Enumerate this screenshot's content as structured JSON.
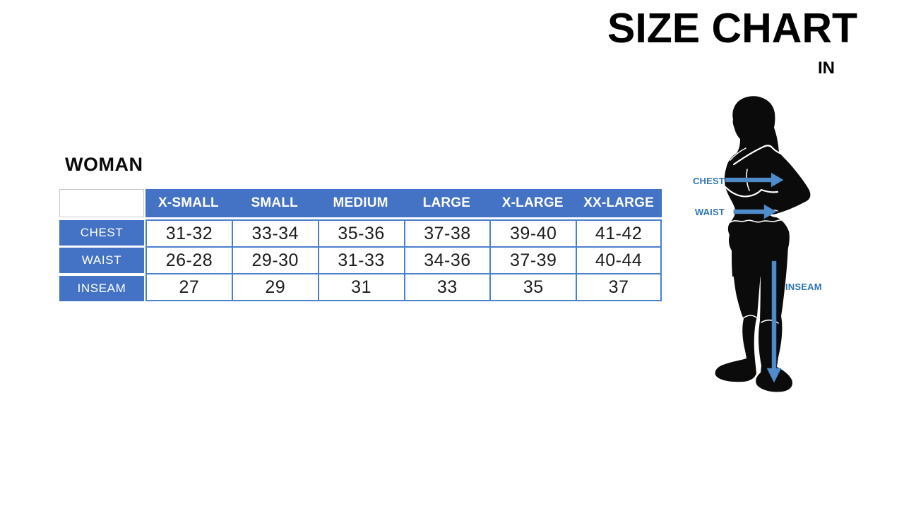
{
  "header": {
    "title": "SIZE CHART",
    "unit": "IN"
  },
  "section": {
    "title": "WOMAN"
  },
  "table": {
    "columns": [
      "X-SMALL",
      "SMALL",
      "MEDIUM",
      "LARGE",
      "X-LARGE",
      "XX-LARGE"
    ],
    "rows": [
      {
        "label": "CHEST",
        "values": [
          "31-32",
          "33-34",
          "35-36",
          "37-38",
          "39-40",
          "41-42"
        ]
      },
      {
        "label": "WAIST",
        "values": [
          "26-28",
          "29-30",
          "31-33",
          "34-36",
          "37-39",
          "40-44"
        ]
      },
      {
        "label": "INSEAM",
        "values": [
          "27",
          "29",
          "31",
          "33",
          "35",
          "37"
        ]
      }
    ]
  },
  "figure": {
    "type": "woman-silhouette",
    "labels": {
      "chest": "CHEST",
      "waist": "WAIST",
      "inseam": "INSEAM"
    }
  },
  "colors": {
    "table_blue": "#4472C4",
    "cell_border_blue": "#4A80CC",
    "arrow_blue": "#4F8CCB",
    "annotation_blue": "#2E75B6",
    "silhouette_black": "#0B0B0B"
  },
  "chart_data": {
    "type": "table",
    "title": "SIZE CHART",
    "unit": "IN",
    "section": "WOMAN",
    "columns": [
      "X-SMALL",
      "SMALL",
      "MEDIUM",
      "LARGE",
      "X-LARGE",
      "XX-LARGE"
    ],
    "rows": [
      {
        "label": "CHEST",
        "values": [
          "31-32",
          "33-34",
          "35-36",
          "37-38",
          "39-40",
          "41-42"
        ]
      },
      {
        "label": "WAIST",
        "values": [
          "26-28",
          "29-30",
          "31-33",
          "34-36",
          "37-39",
          "40-44"
        ]
      },
      {
        "label": "INSEAM",
        "values": [
          "27",
          "29",
          "31",
          "33",
          "35",
          "37"
        ]
      }
    ],
    "figure_annotations": [
      "CHEST",
      "WAIST",
      "INSEAM"
    ]
  }
}
